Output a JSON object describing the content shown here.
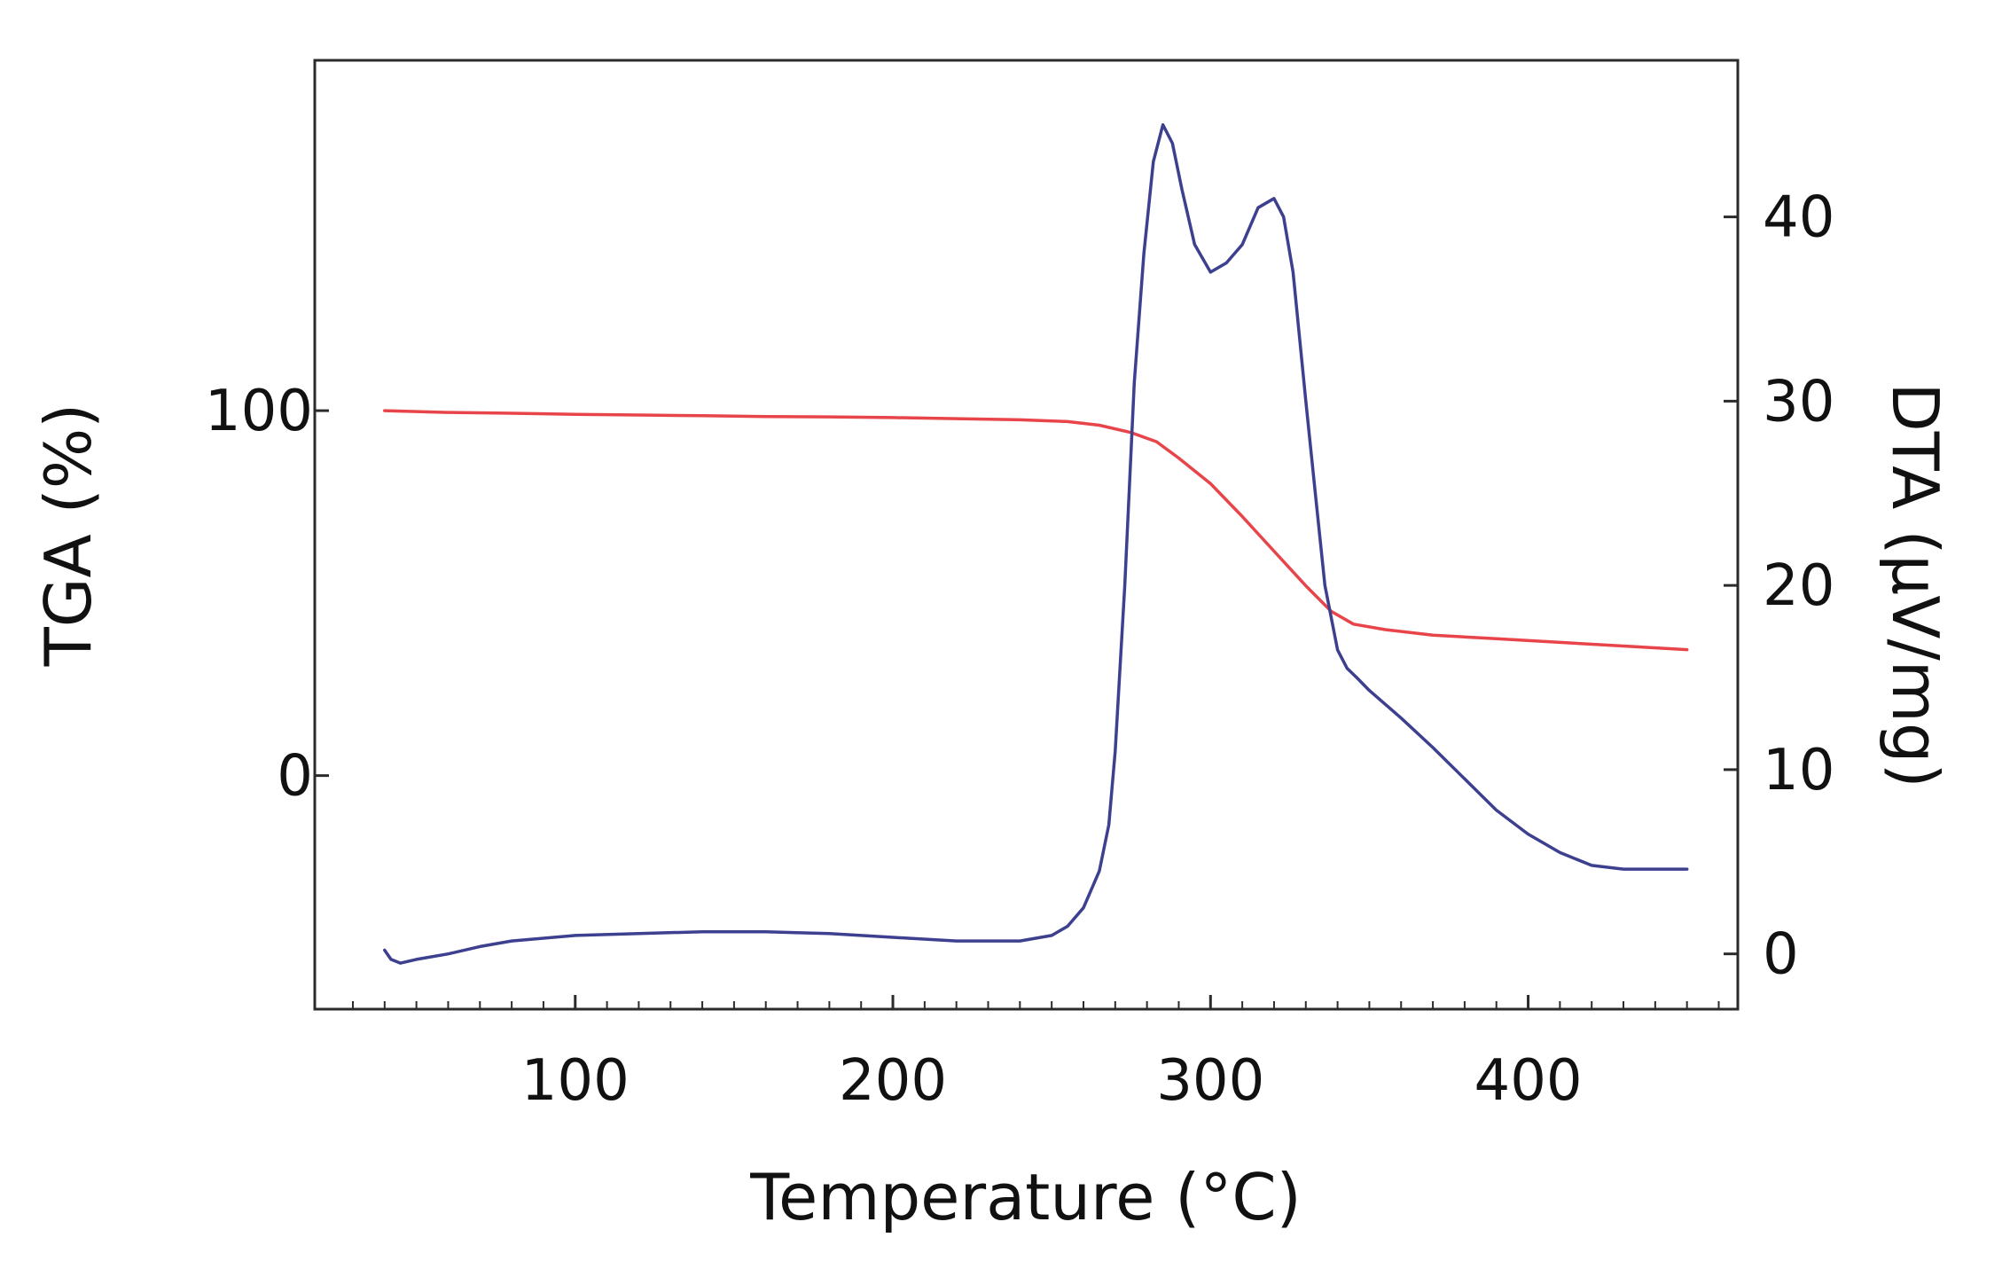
{
  "chart_data": {
    "type": "line",
    "title": "",
    "xlabel": "Temperature (°C)",
    "ylabel_left": "TGA (%)",
    "ylabel_right": "DTA (µV/mg)",
    "xlim": [
      18,
      466
    ],
    "ylim_left": [
      -64,
      196
    ],
    "ylim_right": [
      -3,
      48.5
    ],
    "x_ticks": [
      100,
      200,
      300,
      400
    ],
    "x_tick_labels": [
      "100",
      "200",
      "300",
      "400"
    ],
    "y_left_ticks": [
      0,
      100
    ],
    "y_left_tick_labels": [
      "0",
      "100"
    ],
    "y_right_ticks": [
      0,
      10,
      20,
      30,
      40
    ],
    "y_right_tick_labels": [
      "0",
      "10",
      "20",
      "30",
      "40"
    ],
    "grid": false,
    "series": [
      {
        "color": "#e8454a",
        "axis": "left",
        "x": [
          40,
          60,
          80,
          100,
          120,
          140,
          160,
          180,
          200,
          220,
          240,
          255,
          265,
          275,
          283,
          290,
          300,
          310,
          320,
          330,
          338,
          345,
          355,
          370,
          390,
          410,
          430,
          450
        ],
        "y": [
          100,
          99.5,
          99.3,
          99,
          98.8,
          98.6,
          98.4,
          98.3,
          98.1,
          97.8,
          97.5,
          97,
          96,
          94,
          91.5,
          87,
          80,
          71,
          61.5,
          52,
          45,
          41.5,
          40,
          38.5,
          37.5,
          36.5,
          35.5,
          34.5
        ]
      },
      {
        "color": "#3d3f8f",
        "axis": "right",
        "x": [
          40,
          42,
          45,
          50,
          60,
          70,
          80,
          100,
          120,
          140,
          160,
          180,
          200,
          220,
          240,
          250,
          255,
          260,
          265,
          268,
          270,
          273,
          276,
          279,
          282,
          285,
          288,
          291,
          295,
          300,
          305,
          310,
          315,
          320,
          323,
          326,
          330,
          333,
          336,
          340,
          343,
          346,
          350,
          360,
          370,
          380,
          390,
          400,
          410,
          420,
          430,
          450
        ],
        "y": [
          0.2,
          -0.3,
          -0.5,
          -0.3,
          0,
          0.4,
          0.7,
          1.0,
          1.1,
          1.2,
          1.2,
          1.1,
          0.9,
          0.7,
          0.7,
          1.0,
          1.5,
          2.5,
          4.5,
          7,
          11,
          20,
          31,
          38,
          43,
          45,
          44,
          41.5,
          38.5,
          37,
          37.5,
          38.5,
          40.5,
          41,
          40,
          37,
          30,
          25,
          20,
          16.5,
          15.5,
          15,
          14.3,
          12.8,
          11.2,
          9.5,
          7.8,
          6.5,
          5.5,
          4.8,
          4.6,
          4.6
        ]
      }
    ]
  }
}
